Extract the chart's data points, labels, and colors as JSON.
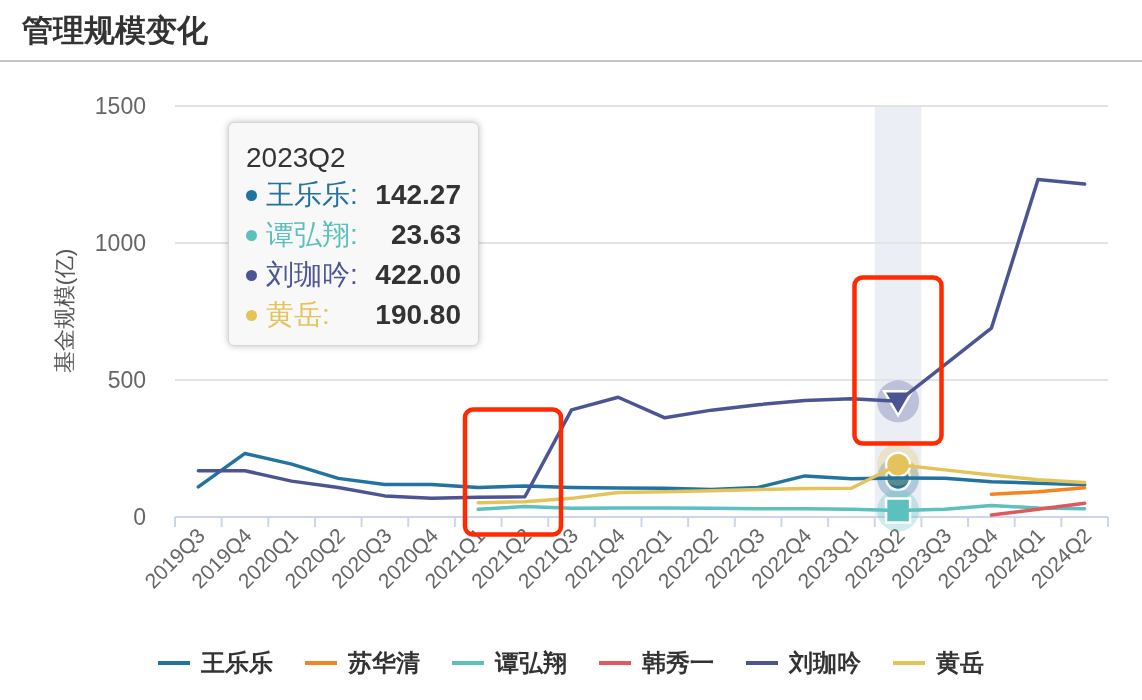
{
  "chart_data": {
    "type": "line",
    "title": "管理规模变化",
    "ylabel": "基金规模(亿)",
    "categories": [
      "2019Q3",
      "2019Q4",
      "2020Q1",
      "2020Q2",
      "2020Q3",
      "2020Q4",
      "2021Q1",
      "2021Q2",
      "2021Q3",
      "2021Q4",
      "2022Q1",
      "2022Q2",
      "2022Q3",
      "2022Q4",
      "2023Q1",
      "2023Q2",
      "2023Q3",
      "2023Q4",
      "2024Q1",
      "2024Q2"
    ],
    "series": [
      {
        "name": "王乐乐",
        "color": "#22739f",
        "values": [
          110,
          232,
          193,
          141,
          119,
          119,
          108,
          113,
          108,
          106,
          105,
          100,
          108,
          150,
          140,
          142.27,
          141,
          129,
          123,
          118
        ]
      },
      {
        "name": "苏华清",
        "color": "#f5841f",
        "values": [
          null,
          null,
          null,
          null,
          null,
          null,
          null,
          null,
          null,
          null,
          null,
          null,
          null,
          null,
          null,
          null,
          null,
          83,
          92,
          107
        ]
      },
      {
        "name": "谭弘翔",
        "color": "#5bc0be",
        "values": [
          null,
          null,
          null,
          null,
          null,
          null,
          28,
          38,
          32,
          33,
          33,
          32,
          30,
          30,
          28,
          23.63,
          28,
          42,
          33,
          30
        ]
      },
      {
        "name": "韩秀一",
        "color": "#e0585b",
        "values": [
          null,
          null,
          null,
          null,
          null,
          null,
          null,
          null,
          null,
          null,
          null,
          null,
          null,
          null,
          null,
          null,
          null,
          7,
          28,
          50
        ]
      },
      {
        "name": "刘珈吟",
        "color": "#4b5594",
        "values": [
          169,
          169,
          131,
          108,
          77,
          68,
          72,
          74,
          391,
          437,
          362,
          390,
          410,
          425,
          432,
          422.0,
          555,
          689,
          1232,
          1215
        ]
      },
      {
        "name": "黄岳",
        "color": "#e4c35a",
        "values": [
          null,
          null,
          null,
          null,
          null,
          null,
          52,
          56,
          68,
          89,
          92,
          96,
          100,
          104,
          105,
          190.8,
          172,
          153,
          136,
          126
        ]
      }
    ],
    "ylim": [
      0,
      1500
    ],
    "yticks": [
      0,
      500,
      1000,
      1500
    ],
    "grid": "y",
    "legend": "bottom",
    "bands": [
      {
        "axis": "x",
        "from": "2023Q2",
        "to": "2023Q2",
        "color": "#eceef6"
      }
    ],
    "annotations": [
      "2023Q2",
      "王乐乐:**142.27**",
      "谭弘翔:  **23.63**",
      "刘珈吟:**422.00**",
      "黄岳:  **190.80**"
    ]
  }
}
